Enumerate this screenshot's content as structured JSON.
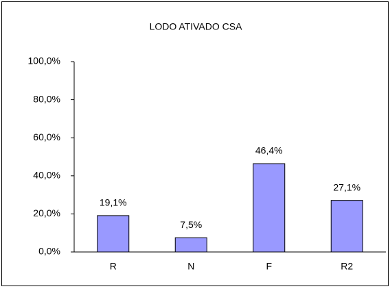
{
  "chart_data": {
    "type": "bar",
    "title": "LODO ATIVADO CSA",
    "categories": [
      "R",
      "N",
      "F",
      "R2"
    ],
    "values": [
      19.1,
      7.5,
      46.4,
      27.1
    ],
    "value_labels": [
      "19,1%",
      "7,5%",
      "46,4%",
      "27,1%"
    ],
    "color": "#9999ff",
    "ylim": [
      0,
      100
    ],
    "yticks": [
      {
        "value": 0,
        "label": "0,0%"
      },
      {
        "value": 20,
        "label": "20,0%"
      },
      {
        "value": 40,
        "label": "40,0%"
      },
      {
        "value": 60,
        "label": "60,0%"
      },
      {
        "value": 80,
        "label": "80,0%"
      },
      {
        "value": 100,
        "label": "100,0%"
      }
    ],
    "grid": false
  }
}
